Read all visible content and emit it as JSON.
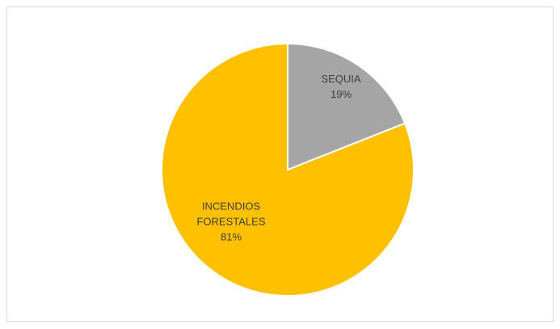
{
  "chart_data": {
    "type": "pie",
    "title": "",
    "slices": [
      {
        "category_lines": [
          "SEQUIA"
        ],
        "category": "SEQUIA",
        "value": 19,
        "percent_label": "19%",
        "color": "#a5a5a5"
      },
      {
        "category_lines": [
          "INCENDIOS",
          "FORESTALES"
        ],
        "category": "INCENDIOS FORESTALES",
        "value": 81,
        "percent_label": "81%",
        "color": "#ffc000"
      }
    ],
    "start_angle": "12 o'clock",
    "direction": "clockwise",
    "legend": "none",
    "slice_border_color": "#ffffff"
  }
}
